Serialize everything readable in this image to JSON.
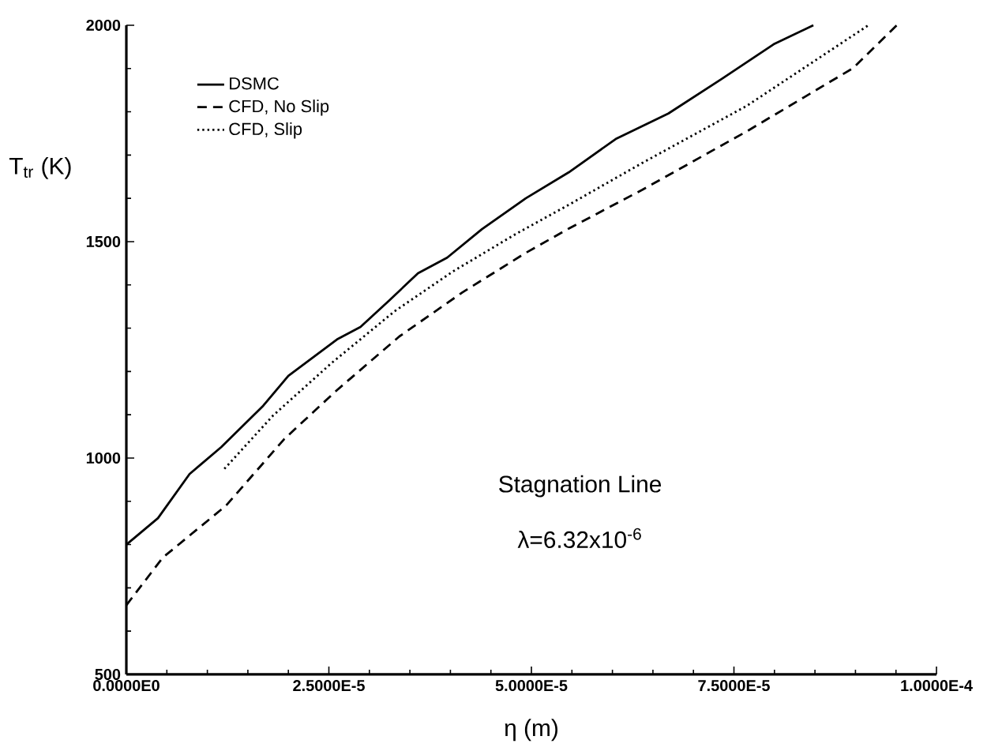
{
  "chart_data": {
    "type": "line",
    "xlabel": "η (m)",
    "ylabel": "T$_{tr}$ (K)",
    "xlim": [
      0,
      0.0001
    ],
    "ylim": [
      500,
      2000
    ],
    "xticks": [
      {
        "value": 0,
        "label": "0.0000E0"
      },
      {
        "value": 2.5e-05,
        "label": "2.5000E-5"
      },
      {
        "value": 5e-05,
        "label": "5.0000E-5"
      },
      {
        "value": 7.5e-05,
        "label": "7.5000E-5"
      },
      {
        "value": 0.0001,
        "label": "1.0000E-4"
      }
    ],
    "yticks": [
      500,
      1000,
      1500,
      2000
    ],
    "legend": "top left",
    "annotations": [
      "Stagnation Line",
      "λ=6.32x10$^{-6}$"
    ],
    "series": [
      {
        "name": "DSMC",
        "color": "#000000",
        "line_style": "solid",
        "x": [
          0,
          3.9e-06,
          7.8e-06,
          1.17e-05,
          1.69e-05,
          2e-05,
          2.6e-05,
          2.89e-05,
          3.25e-05,
          3.6e-05,
          3.96e-05,
          4.39e-05,
          4.93e-05,
          5.46e-05,
          6.04e-05,
          6.69e-05,
          7.35e-05,
          7.99e-05,
          8.48e-05
        ],
        "values": [
          800,
          861,
          963,
          1025,
          1121,
          1190,
          1274,
          1303,
          1365,
          1427,
          1463,
          1529,
          1600,
          1660,
          1737,
          1796,
          1876,
          1956,
          2000
        ]
      },
      {
        "name": "CFD, No Slip",
        "color": "#000000",
        "line_style": "dashed",
        "x": [
          0,
          4.5e-06,
          1.23e-05,
          1.95e-05,
          2.6e-05,
          3.37e-05,
          4.15e-05,
          4.93e-05,
          5.46e-05,
          6.37e-05,
          7.66e-05,
          8.97e-05,
          9.51e-05
        ],
        "values": [
          660,
          770,
          890,
          1044,
          1157,
          1281,
          1383,
          1474,
          1530,
          1620,
          1755,
          1901,
          2000
        ]
      },
      {
        "name": "CFD, Slip",
        "color": "#000000",
        "line_style": "dotted",
        "x": [
          1.21e-05,
          1.81e-05,
          2.53e-05,
          3.31e-05,
          4.03e-05,
          4.81e-05,
          5.46e-05,
          6.37e-05,
          7.66e-05,
          9.16e-05
        ],
        "values": [
          975,
          1098,
          1219,
          1339,
          1431,
          1518,
          1585,
          1682,
          1814,
          2000
        ]
      }
    ]
  }
}
